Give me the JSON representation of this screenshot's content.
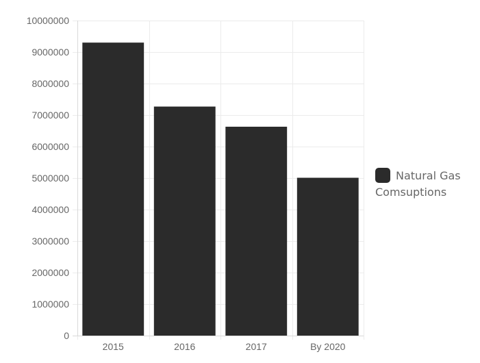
{
  "chart_data": {
    "type": "bar",
    "categories": [
      "2015",
      "2016",
      "2017",
      "By 2020"
    ],
    "series": [
      {
        "name": "Natural Gas Comsuptions",
        "values": [
          9300000,
          7270000,
          6630000,
          5010000
        ]
      }
    ],
    "ylim": [
      0,
      10000000
    ],
    "yticks": [
      0,
      1000000,
      2000000,
      3000000,
      4000000,
      5000000,
      6000000,
      7000000,
      8000000,
      9000000,
      10000000
    ],
    "grid": true,
    "legend_position": "right",
    "bar_color": "#2b2b2b"
  }
}
